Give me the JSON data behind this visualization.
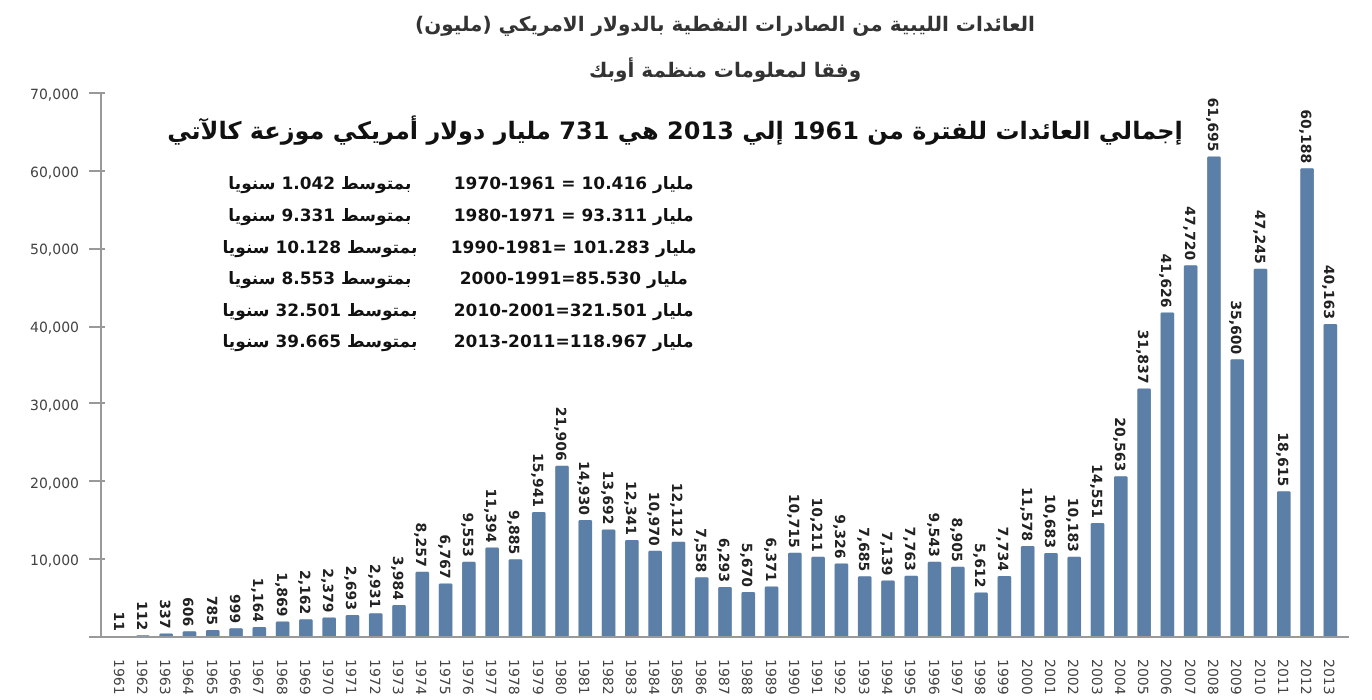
{
  "chart_data": {
    "type": "bar",
    "title": "العائدات الليبية من الصادرات النفطية بالدولار الامريكي (مليون)",
    "subtitle": "وفقا لمعلومات منظمة أوبك",
    "annotations": [
      "إجمالي العائدات للفترة من 1961 إلي 2013 هي 731 مليار دولار أمريكي موزعة كالآتي",
      "1970-1961 = 10.416 مليار",
      "بمتوسط 1.042 سنويا",
      "1980-1971 = 93.311 مليار",
      "بمتوسط 9.331 سنويا",
      "1990-1981= 101.283 مليار",
      "بمتوسط 10.128 سنويا",
      "2000-1991=85.530 مليار",
      "بمتوسط 8.553 سنويا",
      "2010-2001=321.501 مليار",
      "بمتوسط 32.501 سنويا",
      "2013-2011=118.967 مليار",
      "بمتوسط 39.665 سنويا"
    ],
    "categories": [
      "1961",
      "1962",
      "1963",
      "1964",
      "1965",
      "1966",
      "1967",
      "1968",
      "1969",
      "1970",
      "1971",
      "1972",
      "1973",
      "1974",
      "1975",
      "1976",
      "1977",
      "1978",
      "1979",
      "1980",
      "1981",
      "1982",
      "1983",
      "1984",
      "1985",
      "1986",
      "1987",
      "1988",
      "1989",
      "1990",
      "1991",
      "1992",
      "1993",
      "1994",
      "1995",
      "1996",
      "1997",
      "1998",
      "1999",
      "2000",
      "2001",
      "2002",
      "2003",
      "2004",
      "2005",
      "2006",
      "2007",
      "2008",
      "2009",
      "2010",
      "2011",
      "2012",
      "2013"
    ],
    "values": [
      11,
      112,
      337,
      606,
      785,
      999,
      1164,
      1869,
      2162,
      2379,
      2693,
      2931,
      3984,
      8257,
      6767,
      9553,
      11394,
      9885,
      15941,
      21906,
      14930,
      13692,
      12341,
      10970,
      12112,
      7558,
      6293,
      5670,
      6371,
      10715,
      10211,
      9326,
      7685,
      7139,
      7763,
      9543,
      8905,
      5612,
      7734,
      11578,
      10683,
      10183,
      14551,
      20563,
      31837,
      41626,
      47720,
      61695,
      35600,
      47245,
      18615,
      60188,
      40163
    ],
    "value_labels": [
      "11",
      "112",
      "337",
      "606",
      "785",
      "999",
      "1,164",
      "1,869",
      "2,162",
      "2,379",
      "2,693",
      "2,931",
      "3,984",
      "8,257",
      "6,767",
      "9,553",
      "11,394",
      "9,885",
      "15,941",
      "21,906",
      "14,930",
      "13,692",
      "12,341",
      "10,970",
      "12,112",
      "7,558",
      "6,293",
      "5,670",
      "6,371",
      "10,715",
      "10,211",
      "9,326",
      "7,685",
      "7,139",
      "7,763",
      "9,543",
      "8,905",
      "5,612",
      "7,734",
      "11,578",
      "10,683",
      "10,183",
      "14,551",
      "20,563",
      "31,837",
      "41,626",
      "47,720",
      "61,695",
      "35,600",
      "47,245",
      "18,615",
      "60,188",
      "40,163"
    ],
    "color": "#5b7fa6",
    "ylim": [
      0,
      70000
    ],
    "yticks": [
      {
        "value": 0,
        "label": null
      },
      {
        "value": 10000,
        "label": "10,000"
      },
      {
        "value": 20000,
        "label": "20,000"
      },
      {
        "value": 30000,
        "label": "30,000"
      },
      {
        "value": 40000,
        "label": "40,000"
      },
      {
        "value": 50000,
        "label": "50,000"
      },
      {
        "value": 60000,
        "label": "60,000"
      },
      {
        "value": 70000,
        "label": "70,000"
      }
    ],
    "grid": false
  }
}
